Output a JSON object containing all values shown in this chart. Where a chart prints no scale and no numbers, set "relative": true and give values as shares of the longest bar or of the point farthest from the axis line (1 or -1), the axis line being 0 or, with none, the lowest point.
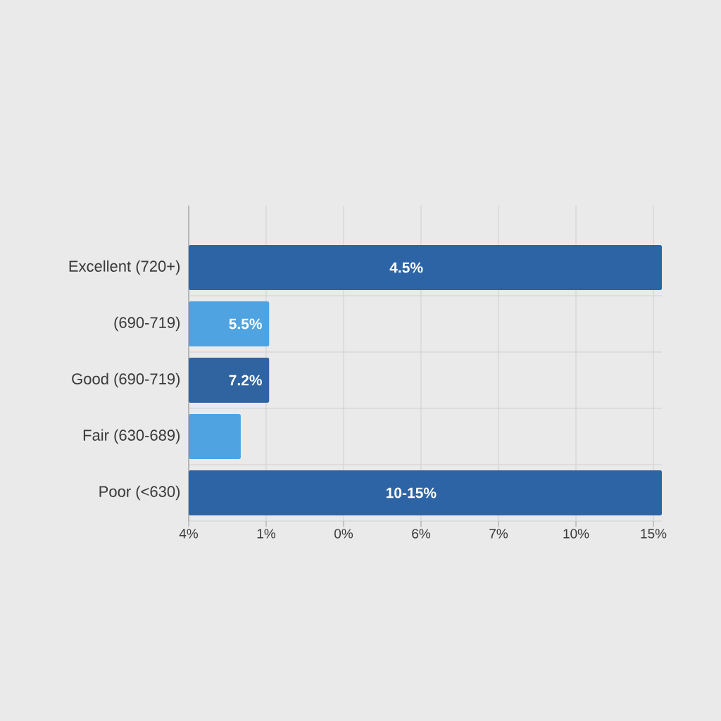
{
  "chart_data": {
    "type": "bar",
    "orientation": "horizontal",
    "relative": true,
    "categories": [
      "Excellent (720+)",
      "(690-719)",
      "Good (690-719)",
      "Fair (630-689)",
      "Poor (<630)"
    ],
    "values": [
      1,
      0.17,
      0.17,
      0.11,
      1
    ],
    "colors": [
      "#2c64a6",
      "#4fa3e0",
      "#2f64a0",
      "#4fa3e0",
      "#2c64a6"
    ],
    "annotations": [
      "4%",
      "1%",
      "0%",
      "6%",
      "7%",
      "10%",
      "15%",
      {
        "text": "4.5%",
        "x": 0.46,
        "y": "Excellent (720+)"
      },
      {
        "text": "5.5%",
        "x": 0.12,
        "y": "(690-719)"
      },
      {
        "text": "7.2%",
        "x": 0.12,
        "y": "Good (690-719)"
      },
      {
        "text": "10-15%",
        "x": 0.47,
        "y": "Poor (<630)"
      }
    ],
    "grid": true
  }
}
